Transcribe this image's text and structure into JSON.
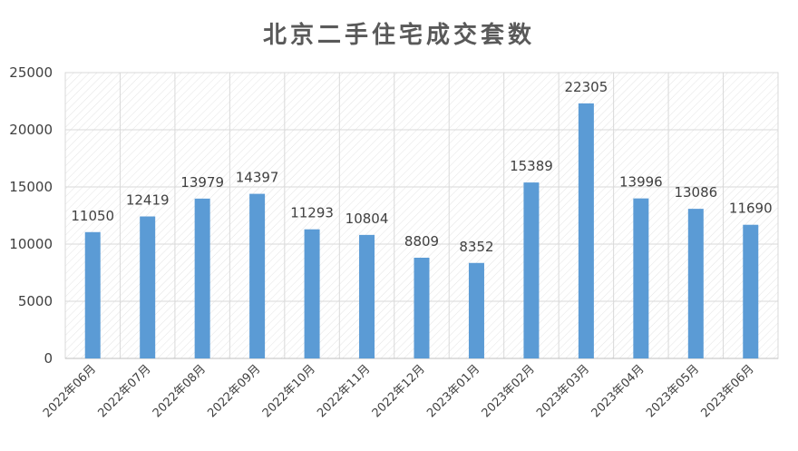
{
  "chart_data": {
    "type": "bar",
    "title": "北京二手住宅成交套数",
    "categories": [
      "2022年06月",
      "2022年07月",
      "2022年08月",
      "2022年09月",
      "2022年10月",
      "2022年11月",
      "2022年12月",
      "2023年01月",
      "2023年02月",
      "2023年03月",
      "2023年04月",
      "2023年05月",
      "2023年06月"
    ],
    "values": [
      11050,
      12419,
      13979,
      14397,
      11293,
      10804,
      8809,
      8352,
      15389,
      22305,
      13996,
      13086,
      11690
    ],
    "xlabel": "",
    "ylabel": "",
    "ylim": [
      0,
      25000
    ],
    "yticks": [
      0,
      5000,
      10000,
      15000,
      20000,
      25000
    ],
    "grid": true,
    "legend": "none",
    "colors": {
      "bar": "#5B9BD5",
      "grid": "#D9D9D9",
      "text": "#404040",
      "title": "#595959"
    }
  }
}
